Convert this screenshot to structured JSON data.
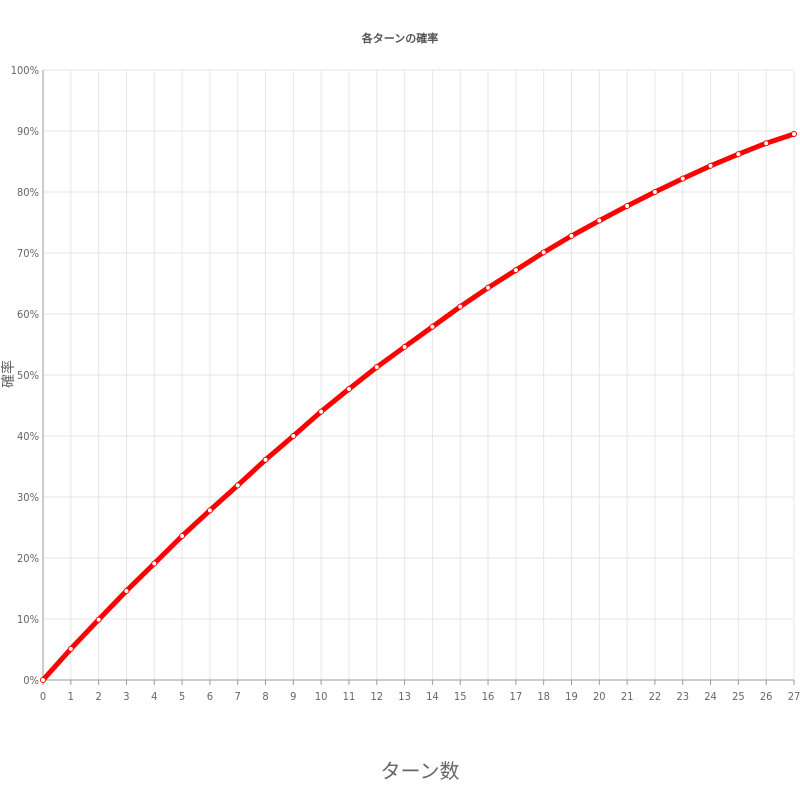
{
  "chart_data": {
    "type": "line",
    "title": "各ターンの確率",
    "xlabel": "ターン数",
    "ylabel": "確率",
    "x": [
      0,
      1,
      2,
      3,
      4,
      5,
      6,
      7,
      8,
      9,
      10,
      11,
      12,
      13,
      14,
      15,
      16,
      17,
      18,
      19,
      20,
      21,
      22,
      23,
      24,
      25,
      26,
      27
    ],
    "xlim": [
      0,
      27
    ],
    "ylim": [
      0,
      100
    ],
    "y_ticks": [
      "0%",
      "10%",
      "20%",
      "30%",
      "40%",
      "50%",
      "60%",
      "70%",
      "80%",
      "90%",
      "100%"
    ],
    "grid": true,
    "series": [
      {
        "color": "#ff0000",
        "values": [
          0,
          5.1,
          9.9,
          14.6,
          19.1,
          23.6,
          27.8,
          31.9,
          36.1,
          40.0,
          44.0,
          47.7,
          51.3,
          54.6,
          57.9,
          61.2,
          64.3,
          67.2,
          70.1,
          72.8,
          75.3,
          77.7,
          80.0,
          82.2,
          84.3,
          86.2,
          88.0,
          89.5
        ]
      }
    ]
  }
}
